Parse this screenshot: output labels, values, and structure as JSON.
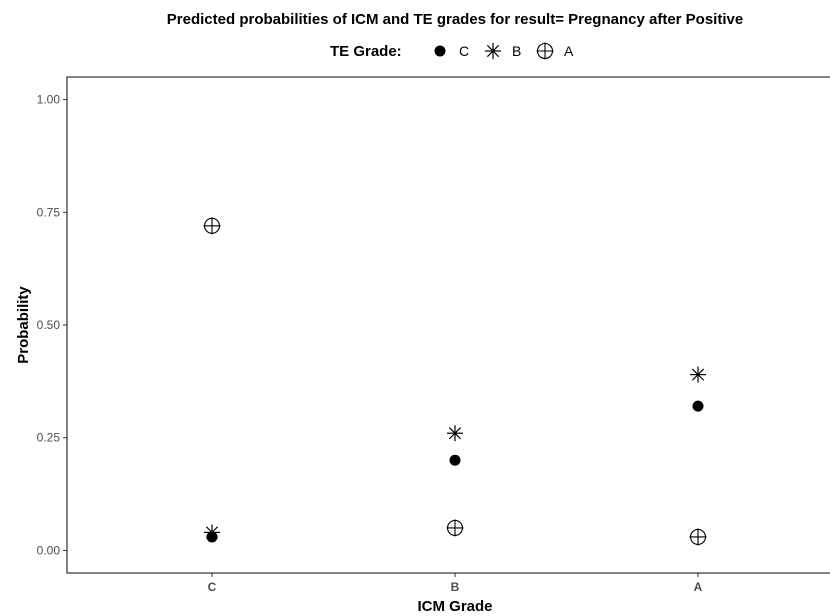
{
  "chart_data": {
    "type": "scatter",
    "title": "Predicted probabilities of ICM and TE grades for result= Pregnancy after Positive",
    "xlabel": "ICM Grade",
    "ylabel": "Probability",
    "categories": [
      "C",
      "B",
      "A"
    ],
    "ylim": [
      -0.05,
      1.05
    ],
    "yticks": [
      0.0,
      0.25,
      0.5,
      0.75,
      1.0
    ],
    "ytick_labels": [
      "0.00",
      "0.25",
      "0.50",
      "0.75",
      "1.00"
    ],
    "grid": false,
    "legend": {
      "title": "TE Grade:",
      "placement": "top",
      "entries": [
        "C",
        "B",
        "A"
      ]
    },
    "series": [
      {
        "name": "C",
        "marker": "filled-circle",
        "color": "#000000",
        "values": [
          0.03,
          0.2,
          0.32
        ]
      },
      {
        "name": "B",
        "marker": "asterisk",
        "color": "#000000",
        "values": [
          0.04,
          0.26,
          0.39
        ]
      },
      {
        "name": "A",
        "marker": "circle-plus",
        "color": "#000000",
        "values": [
          0.72,
          0.05,
          0.03
        ]
      }
    ]
  }
}
